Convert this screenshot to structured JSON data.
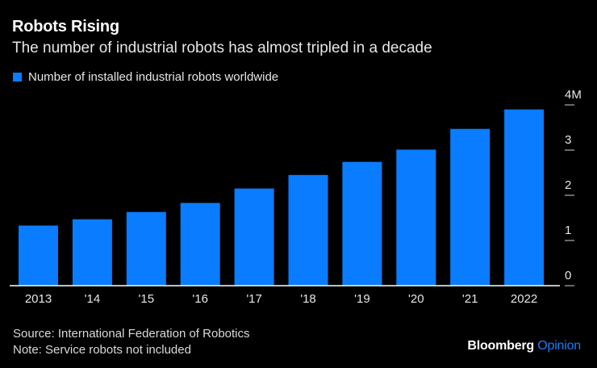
{
  "header": {
    "title": "Robots Rising",
    "subtitle": "The number of industrial robots has almost tripled in a decade"
  },
  "footer": {
    "source": "Source: International Federation of Robotics",
    "note": "Note: Service robots not included"
  },
  "brand": {
    "name": "Bloomberg",
    "accent": "Opinion"
  },
  "colors": {
    "bar": "#0a7cff",
    "background": "#000000",
    "text": "#ffffff"
  },
  "chart_data": {
    "type": "bar",
    "categories": [
      "2013",
      "'14",
      "'15",
      "'16",
      "'17",
      "'18",
      "'19",
      "'20",
      "'21",
      "2022"
    ],
    "series": [
      {
        "name": "Number of installed industrial robots worldwide",
        "values": [
          1.33,
          1.47,
          1.63,
          1.83,
          2.15,
          2.45,
          2.74,
          3.01,
          3.47,
          3.9
        ]
      }
    ],
    "yticks": [
      {
        "value": 0,
        "label": "0"
      },
      {
        "value": 1,
        "label": "1"
      },
      {
        "value": 2,
        "label": "2"
      },
      {
        "value": 3,
        "label": "3"
      },
      {
        "value": 4,
        "label": "4M"
      }
    ],
    "ylim": [
      0,
      4
    ],
    "unit": "millions",
    "title": "Robots Rising",
    "xlabel": "",
    "ylabel": "",
    "legend_position": "top-left",
    "grid": false
  }
}
